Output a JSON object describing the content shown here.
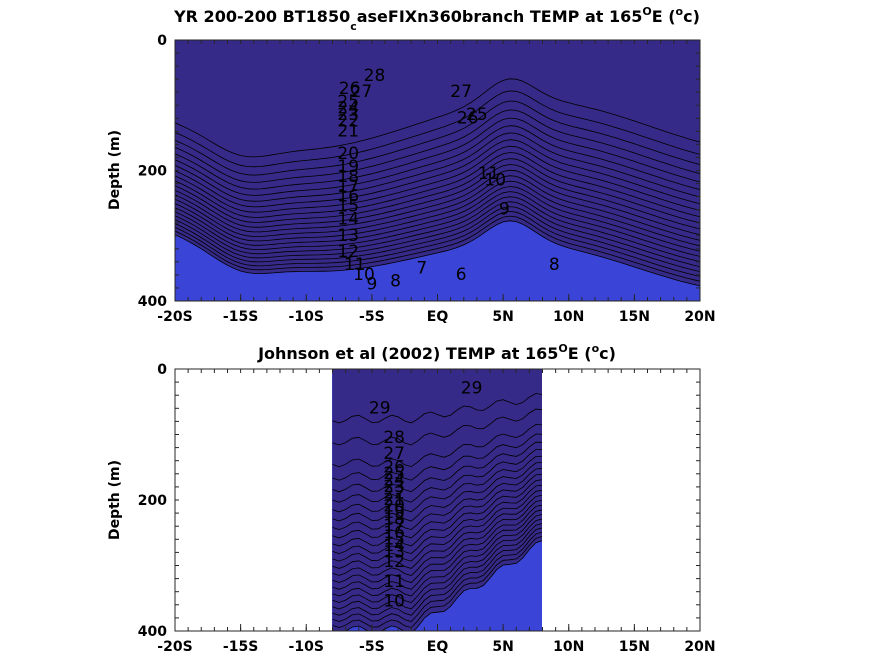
{
  "chart_data": [
    {
      "type": "heatmap",
      "title_main": "YR 200-200 BT1850",
      "title_sub": "c",
      "title_rest": "aseFIXn360branch TEMP at 165",
      "title_deg": "O",
      "title_unit_a": "E (",
      "title_unit_sup": "o",
      "title_unit_b": "c)",
      "xlabel": "",
      "ylabel": "Depth (m)",
      "xlim": [
        -20,
        20
      ],
      "ylim": [
        0,
        400
      ],
      "y_reversed": true,
      "x_tick_labels": [
        "-20S",
        "-15S",
        "-10S",
        "-5S",
        "EQ",
        "5N",
        "10N",
        "15N",
        "20N"
      ],
      "y_tick_labels": [
        "0",
        "200",
        "400"
      ],
      "colormap": "parula",
      "contour_interval": 1,
      "contour_labels": [
        {
          "text": "28",
          "x": -4.8,
          "y": 55
        },
        {
          "text": "27",
          "x": -5.8,
          "y": 80
        },
        {
          "text": "26",
          "x": -6.7,
          "y": 75
        },
        {
          "text": "25",
          "x": -6.8,
          "y": 95
        },
        {
          "text": "24",
          "x": -6.8,
          "y": 105
        },
        {
          "text": "23",
          "x": -6.8,
          "y": 115
        },
        {
          "text": "22",
          "x": -6.8,
          "y": 125
        },
        {
          "text": "21",
          "x": -6.8,
          "y": 140
        },
        {
          "text": "20",
          "x": -6.8,
          "y": 175
        },
        {
          "text": "19",
          "x": -6.8,
          "y": 195
        },
        {
          "text": "18",
          "x": -6.8,
          "y": 210
        },
        {
          "text": "17",
          "x": -6.8,
          "y": 225
        },
        {
          "text": "16",
          "x": -6.8,
          "y": 240
        },
        {
          "text": "15",
          "x": -6.8,
          "y": 255
        },
        {
          "text": "14",
          "x": -6.8,
          "y": 275
        },
        {
          "text": "13",
          "x": -6.8,
          "y": 300
        },
        {
          "text": "12",
          "x": -6.8,
          "y": 325
        },
        {
          "text": "11",
          "x": -6.3,
          "y": 345
        },
        {
          "text": "10",
          "x": -5.6,
          "y": 360
        },
        {
          "text": "9",
          "x": -5.0,
          "y": 375
        },
        {
          "text": "8",
          "x": -3.2,
          "y": 370
        },
        {
          "text": "7",
          "x": -1.2,
          "y": 350
        },
        {
          "text": "6",
          "x": 1.8,
          "y": 360
        },
        {
          "text": "27",
          "x": 1.8,
          "y": 80
        },
        {
          "text": "26",
          "x": 2.3,
          "y": 120
        },
        {
          "text": "25",
          "x": 3.0,
          "y": 115
        },
        {
          "text": "11",
          "x": 3.9,
          "y": 205
        },
        {
          "text": "10",
          "x": 4.4,
          "y": 215
        },
        {
          "text": "9",
          "x": 5.1,
          "y": 260
        },
        {
          "text": "8",
          "x": 8.9,
          "y": 345
        }
      ]
    },
    {
      "type": "heatmap",
      "title_main": "Johnson et al (2002) TEMP at 165",
      "title_deg": "O",
      "title_unit_a": "E (",
      "title_unit_sup": "o",
      "title_unit_b": "c)",
      "xlabel": "",
      "ylabel": "Depth (m)",
      "xlim": [
        -20,
        20
      ],
      "ylim": [
        0,
        400
      ],
      "y_reversed": true,
      "data_xrange": [
        -8,
        8
      ],
      "x_tick_labels": [
        "-20S",
        "-15S",
        "-10S",
        "-5S",
        "EQ",
        "5N",
        "10N",
        "15N",
        "20N"
      ],
      "y_tick_labels": [
        "0",
        "200",
        "400"
      ],
      "colormap": "parula",
      "contour_interval": 1,
      "contour_labels": [
        {
          "text": "29",
          "x": -4.4,
          "y": 60
        },
        {
          "text": "29",
          "x": 2.6,
          "y": 30
        },
        {
          "text": "28",
          "x": -3.3,
          "y": 105
        },
        {
          "text": "27",
          "x": -3.3,
          "y": 130
        },
        {
          "text": "26",
          "x": -3.3,
          "y": 150
        },
        {
          "text": "25",
          "x": -3.3,
          "y": 160
        },
        {
          "text": "24",
          "x": -3.3,
          "y": 170
        },
        {
          "text": "23",
          "x": -3.3,
          "y": 180
        },
        {
          "text": "22",
          "x": -3.3,
          "y": 190
        },
        {
          "text": "21",
          "x": -3.3,
          "y": 200
        },
        {
          "text": "20",
          "x": -3.3,
          "y": 210
        },
        {
          "text": "19",
          "x": -3.3,
          "y": 220
        },
        {
          "text": "18",
          "x": -3.3,
          "y": 230
        },
        {
          "text": "17",
          "x": -3.3,
          "y": 240
        },
        {
          "text": "16",
          "x": -3.3,
          "y": 250
        },
        {
          "text": "15",
          "x": -3.3,
          "y": 260
        },
        {
          "text": "14",
          "x": -3.3,
          "y": 270
        },
        {
          "text": "13",
          "x": -3.3,
          "y": 280
        },
        {
          "text": "12",
          "x": -3.3,
          "y": 295
        },
        {
          "text": "11",
          "x": -3.3,
          "y": 325
        },
        {
          "text": "10",
          "x": -3.3,
          "y": 355
        }
      ]
    }
  ]
}
